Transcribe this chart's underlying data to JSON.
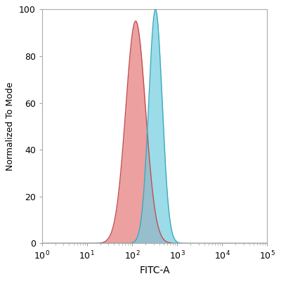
{
  "title": "",
  "xlabel": "FITC-A",
  "ylabel": "Normalized To Mode",
  "ylim": [
    0,
    100
  ],
  "xlim_log": [
    0,
    5
  ],
  "red_peak_log": 2.08,
  "red_peak_height": 95,
  "red_sigma_log": 0.22,
  "blue_peak_log": 2.52,
  "blue_peak_height": 100,
  "blue_sigma_log": 0.15,
  "red_fill_color": "#E88080",
  "red_line_color": "#C05050",
  "blue_fill_color": "#72CCDF",
  "blue_line_color": "#3AAABF",
  "red_fill_alpha": 0.75,
  "blue_fill_alpha": 0.7,
  "background_color": "#FFFFFF",
  "plot_bg_color": "#FFFFFF",
  "yticks": [
    0,
    20,
    40,
    60,
    80,
    100
  ],
  "fig_width": 4.0,
  "fig_height": 4.0,
  "dpi": 100,
  "linewidth": 1.0,
  "spine_color": "#AAAAAA",
  "spine_linewidth": 0.8,
  "xlabel_fontsize": 10,
  "ylabel_fontsize": 9,
  "tick_labelsize": 9
}
